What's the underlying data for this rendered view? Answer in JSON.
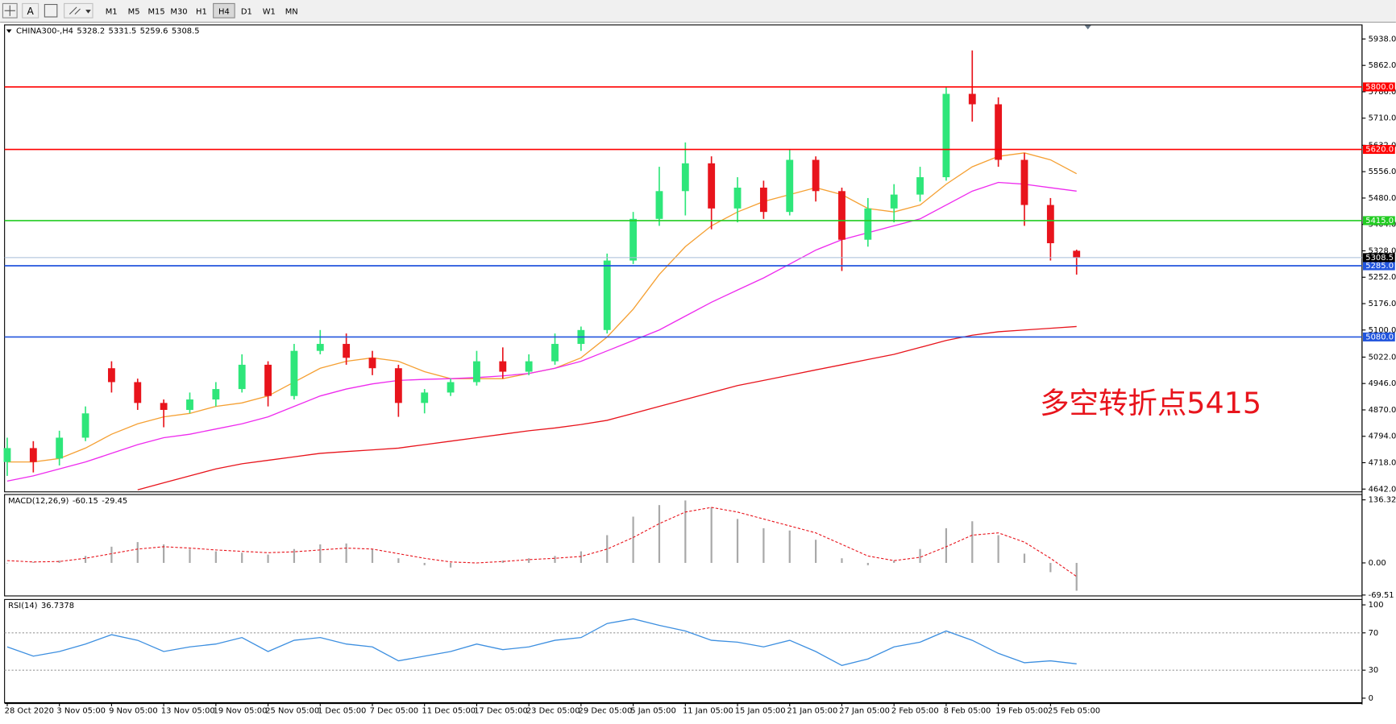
{
  "toolbar": {
    "text_tool": "A",
    "timeframes": [
      "M1",
      "M5",
      "M15",
      "M30",
      "H1",
      "H4",
      "D1",
      "W1",
      "MN"
    ],
    "active": "H4"
  },
  "chart_data": [
    {
      "type": "candlestick",
      "symbol": "CHINA300-,H4",
      "categories": [
        "28 Oct 2020",
        null,
        "3 Nov 05:00",
        null,
        "9 Nov 05:00",
        null,
        "13 Nov 05:00",
        null,
        "19 Nov 05:00",
        null,
        "25 Nov 05:00",
        null,
        "1 Dec 05:00",
        null,
        "7 Dec 05:00",
        null,
        "11 Dec 05:00",
        null,
        "17 Dec 05:00",
        null,
        "23 Dec 05:00",
        null,
        "29 Dec 05:00",
        null,
        "5 Jan 05:00",
        null,
        "11 Jan 05:00",
        null,
        "15 Jan 05:00",
        null,
        "21 Jan 05:00",
        null,
        "27 Jan 05:00",
        null,
        "2 Feb 05:00",
        null,
        "8 Feb 05:00",
        null,
        "19 Feb 05:00",
        null,
        "25 Feb 05:00",
        null
      ],
      "ohlc": [
        [
          4720,
          4790,
          4680,
          4760
        ],
        [
          4760,
          4780,
          4690,
          4720
        ],
        [
          4730,
          4810,
          4710,
          4790
        ],
        [
          4790,
          4880,
          4780,
          4860
        ],
        [
          4990,
          5010,
          4920,
          4950
        ],
        [
          4950,
          4960,
          4870,
          4890
        ],
        [
          4890,
          4900,
          4820,
          4870
        ],
        [
          4870,
          4920,
          4860,
          4900
        ],
        [
          4900,
          4950,
          4880,
          4930
        ],
        [
          4930,
          5030,
          4920,
          5000
        ],
        [
          5000,
          5010,
          4880,
          4910
        ],
        [
          4910,
          5060,
          4900,
          5040
        ],
        [
          5040,
          5100,
          5030,
          5060
        ],
        [
          5060,
          5090,
          5000,
          5020
        ],
        [
          5020,
          5040,
          4970,
          4990
        ],
        [
          4990,
          5000,
          4850,
          4890
        ],
        [
          4890,
          4930,
          4860,
          4920
        ],
        [
          4920,
          4960,
          4910,
          4950
        ],
        [
          4950,
          5040,
          4940,
          5010
        ],
        [
          5010,
          5050,
          4960,
          4980
        ],
        [
          4980,
          5030,
          4970,
          5010
        ],
        [
          5010,
          5090,
          5000,
          5060
        ],
        [
          5060,
          5110,
          5040,
          5100
        ],
        [
          5100,
          5320,
          5090,
          5300
        ],
        [
          5300,
          5440,
          5290,
          5420
        ],
        [
          5420,
          5570,
          5400,
          5500
        ],
        [
          5500,
          5640,
          5430,
          5580
        ],
        [
          5580,
          5600,
          5390,
          5450
        ],
        [
          5450,
          5540,
          5410,
          5510
        ],
        [
          5510,
          5530,
          5420,
          5440
        ],
        [
          5440,
          5620,
          5430,
          5590
        ],
        [
          5590,
          5600,
          5470,
          5500
        ],
        [
          5500,
          5510,
          5270,
          5360
        ],
        [
          5360,
          5480,
          5340,
          5450
        ],
        [
          5450,
          5520,
          5410,
          5490
        ],
        [
          5490,
          5570,
          5470,
          5540
        ],
        [
          5540,
          5800,
          5530,
          5780
        ],
        [
          5780,
          5905,
          5700,
          5750
        ],
        [
          5750,
          5770,
          5570,
          5590
        ],
        [
          5590,
          5610,
          5400,
          5460
        ],
        [
          5460,
          5480,
          5300,
          5350
        ],
        [
          5328.2,
          5331.5,
          5259.6,
          5308.5
        ]
      ],
      "up_color": "#2ee67a",
      "down_color": "#e8141c",
      "ylim": [
        4634,
        5976
      ],
      "yticks": [
        {
          "value": 5938,
          "label": "5938.0"
        },
        {
          "value": 5862,
          "label": "5862.0"
        },
        {
          "value": 5786,
          "label": "5786.0"
        },
        {
          "value": 5710,
          "label": "5710.0"
        },
        {
          "value": 5632,
          "label": "5632.0"
        },
        {
          "value": 5556,
          "label": "5556.0"
        },
        {
          "value": 5480,
          "label": "5480.0"
        },
        {
          "value": 5404,
          "label": "5404.0"
        },
        {
          "value": 5328,
          "label": "5328.0"
        },
        {
          "value": 5252,
          "label": "5252.0"
        },
        {
          "value": 5176,
          "label": "5176.0"
        },
        {
          "value": 5100,
          "label": "5100.0"
        },
        {
          "value": 5022,
          "label": "5022.0"
        },
        {
          "value": 4946,
          "label": "4946.0"
        },
        {
          "value": 4870,
          "label": "4870.0"
        },
        {
          "value": 4794,
          "label": "4794.0"
        },
        {
          "value": 4718,
          "label": "4718.0"
        },
        {
          "value": 4642,
          "label": "4642.0"
        }
      ],
      "moving_averages": [
        {
          "color": "#f5a033",
          "values": [
            4720,
            4720,
            4730,
            4760,
            4800,
            4830,
            4850,
            4860,
            4880,
            4890,
            4910,
            4950,
            4990,
            5010,
            5020,
            5010,
            4980,
            4960,
            4960,
            4960,
            4975,
            4990,
            5020,
            5080,
            5160,
            5260,
            5340,
            5400,
            5440,
            5470,
            5490,
            5510,
            5490,
            5450,
            5440,
            5460,
            5520,
            5570,
            5600,
            5610,
            5590,
            5550
          ]
        },
        {
          "color": "#ee2bee",
          "values": [
            4665,
            4680,
            4700,
            4720,
            4745,
            4770,
            4790,
            4800,
            4815,
            4830,
            4850,
            4880,
            4910,
            4930,
            4945,
            4955,
            4958,
            4960,
            4963,
            4968,
            4975,
            4990,
            5010,
            5040,
            5070,
            5100,
            5140,
            5180,
            5215,
            5250,
            5290,
            5330,
            5360,
            5380,
            5400,
            5420,
            5460,
            5500,
            5525,
            5520,
            5510,
            5500
          ]
        },
        {
          "color": "#e8141c",
          "values": [
            null,
            null,
            null,
            null,
            null,
            4640,
            4660,
            4680,
            4700,
            4715,
            4725,
            4735,
            4745,
            4750,
            4755,
            4760,
            4770,
            4780,
            4790,
            4800,
            4810,
            4818,
            4828,
            4840,
            4860,
            4880,
            4900,
            4920,
            4940,
            4955,
            4970,
            4985,
            5000,
            5015,
            5030,
            5050,
            5070,
            5085,
            5095,
            5100,
            5105,
            5110
          ]
        }
      ],
      "levels": [
        {
          "value": 5800,
          "label": "5800.0",
          "color": "#ff0000"
        },
        {
          "value": 5620,
          "label": "5620.0",
          "color": "#ff0000"
        },
        {
          "value": 5415,
          "label": "5415.0",
          "color": "#22cc22"
        },
        {
          "value": 5285,
          "label": "5285.0",
          "color": "#2255dd"
        },
        {
          "value": 5080,
          "label": "5080.0",
          "color": "#2255dd"
        }
      ],
      "current_price": {
        "value": 5308.5,
        "line_color": "#a8bcd8",
        "box_color": "#000000"
      },
      "annotation": {
        "text": "多空转折点5415",
        "color": "#e8141c"
      }
    },
    {
      "type": "macd",
      "title": "MACD(12,26,9)",
      "histogram": {
        "color": "#a9a9a9",
        "values": [
          0,
          2,
          5,
          15,
          35,
          45,
          40,
          30,
          25,
          22,
          18,
          30,
          40,
          42,
          30,
          10,
          -5,
          -10,
          0,
          5,
          10,
          15,
          25,
          60,
          100,
          125,
          135,
          120,
          95,
          75,
          70,
          50,
          10,
          -5,
          5,
          30,
          75,
          90,
          60,
          20,
          -20,
          -60.15
        ]
      },
      "signal": {
        "color": "#e8141c",
        "values": [
          5,
          2,
          3,
          10,
          20,
          30,
          35,
          32,
          28,
          25,
          22,
          24,
          28,
          32,
          30,
          20,
          10,
          2,
          0,
          3,
          7,
          10,
          14,
          30,
          55,
          85,
          110,
          120,
          110,
          95,
          80,
          65,
          40,
          15,
          5,
          12,
          35,
          60,
          65,
          45,
          10,
          -29.45
        ]
      },
      "ylim": [
        -71.4,
        145.9
      ],
      "yticks": [
        136.32,
        {
          "value": 0,
          "label": "0.00"
        },
        -69.51
      ]
    },
    {
      "type": "rsi",
      "title": "RSI(14)",
      "color": "#3d8fe0",
      "values": [
        55,
        45,
        50,
        58,
        68,
        62,
        50,
        55,
        58,
        65,
        50,
        62,
        65,
        58,
        55,
        40,
        45,
        50,
        58,
        52,
        55,
        62,
        65,
        80,
        85,
        78,
        72,
        62,
        60,
        55,
        62,
        50,
        35,
        42,
        55,
        60,
        72,
        62,
        48,
        38,
        40,
        36.7378
      ],
      "ylim": [
        -4.8,
        104.8
      ],
      "yticks": [
        100,
        70,
        30,
        0
      ],
      "levels": [
        70,
        30
      ]
    }
  ]
}
